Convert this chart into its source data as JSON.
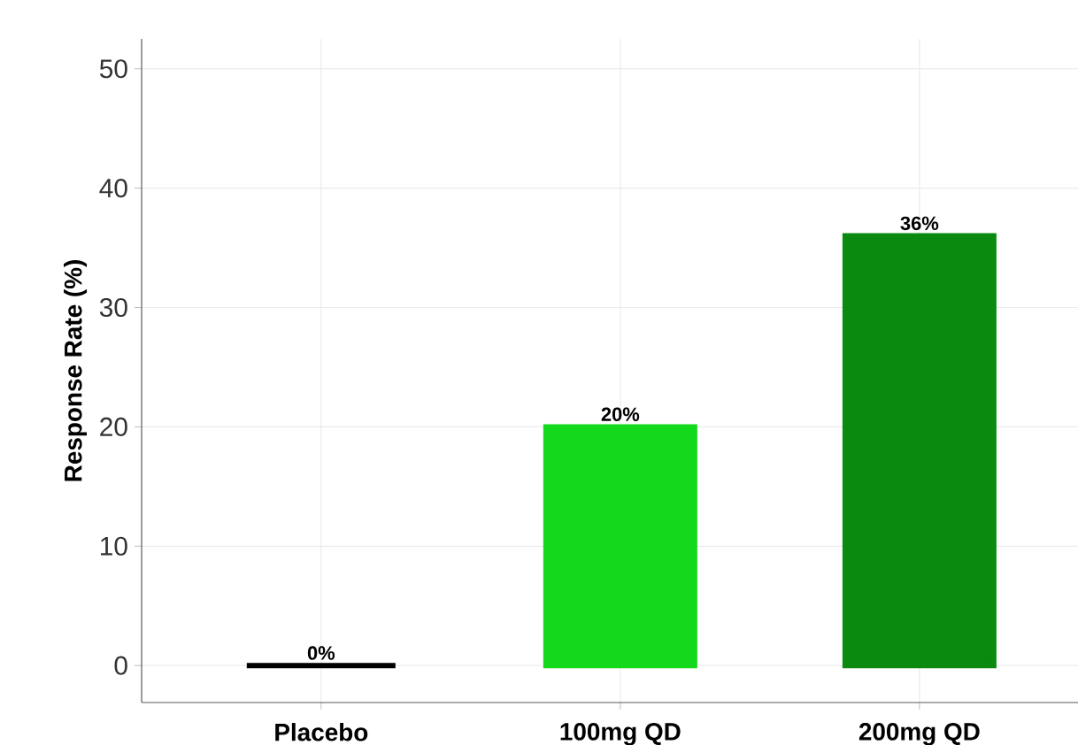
{
  "chart_data": {
    "type": "bar",
    "ylabel": "Response Rate (%)",
    "categories": [
      "Placebo",
      "100mg QD",
      "200mg QD"
    ],
    "values": [
      0,
      20,
      36
    ],
    "value_labels": [
      "0%",
      "20%",
      "36%"
    ],
    "colors": [
      "#000000",
      "#13d81b",
      "#0a8a0e"
    ],
    "ylim": [
      -3.1,
      52.5
    ],
    "yticks": [
      0,
      10,
      20,
      30,
      40,
      50
    ],
    "grid": true
  }
}
